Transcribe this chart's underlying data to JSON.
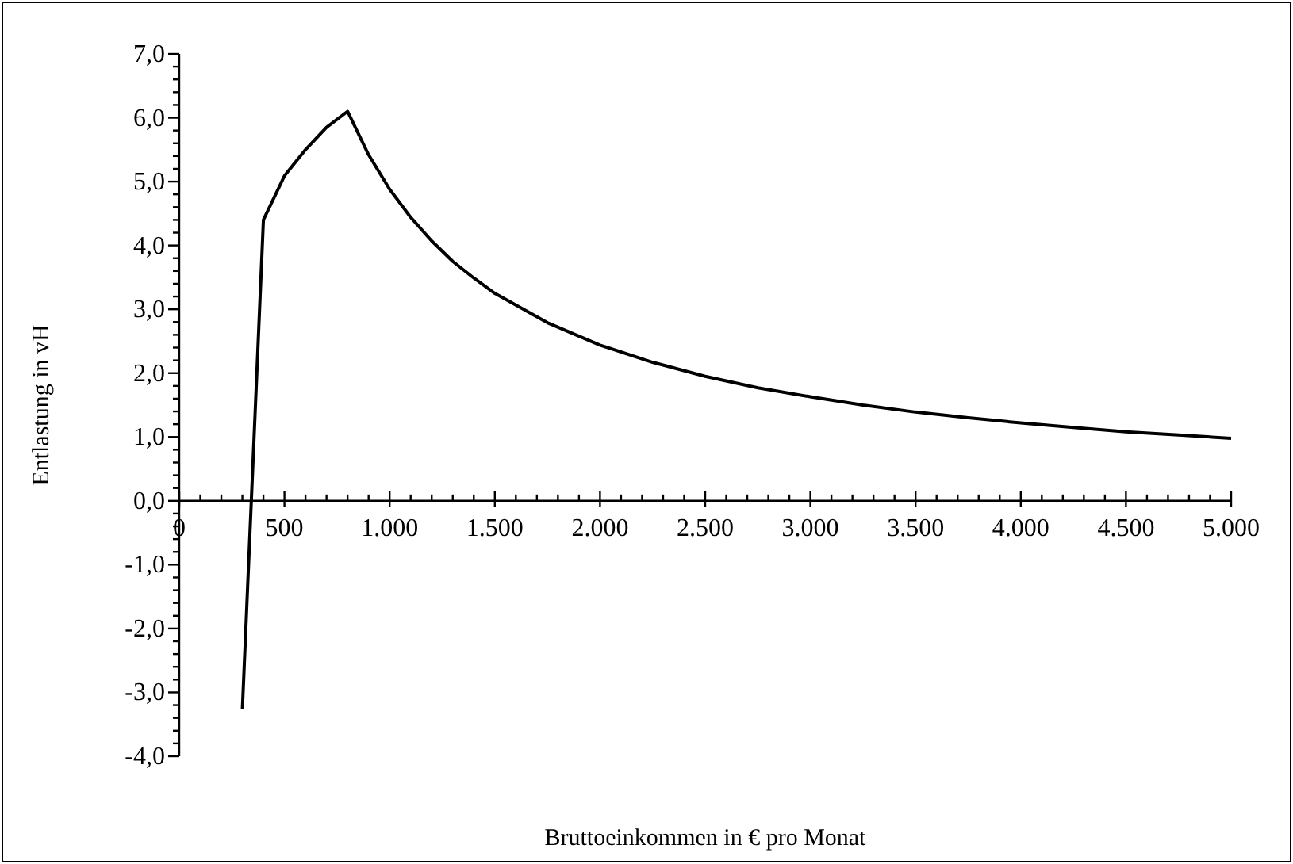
{
  "chart_data": {
    "type": "line",
    "xlabel": "Bruttoeinkommen in € pro Monat",
    "ylabel": "Entlastung in vH",
    "x": [
      300,
      400,
      500,
      600,
      700,
      800,
      900,
      1000,
      1100,
      1200,
      1300,
      1400,
      1500,
      1750,
      2000,
      2250,
      2500,
      2750,
      3000,
      3250,
      3500,
      3750,
      4000,
      4250,
      4500,
      4750,
      5000
    ],
    "series": [
      {
        "color": "#000000",
        "values": [
          -3.26,
          4.4,
          5.09,
          5.5,
          5.85,
          6.1,
          5.42,
          4.88,
          4.44,
          4.07,
          3.75,
          3.49,
          3.25,
          2.79,
          2.44,
          2.17,
          1.95,
          1.77,
          1.63,
          1.5,
          1.39,
          1.3,
          1.22,
          1.15,
          1.08,
          1.03,
          0.98
        ]
      }
    ],
    "xlim": [
      0,
      5000
    ],
    "ylim": [
      -4,
      7
    ],
    "xticks": [
      0,
      {
        "value": 100,
        "label": null
      },
      {
        "value": 200,
        "label": null
      },
      {
        "value": 300,
        "label": null
      },
      {
        "value": 400,
        "label": null
      },
      500,
      {
        "value": 600,
        "label": null
      },
      {
        "value": 700,
        "label": null
      },
      {
        "value": 800,
        "label": null
      },
      {
        "value": 900,
        "label": null
      },
      {
        "value": 1000,
        "label": "1.000"
      },
      {
        "value": 1100,
        "label": null
      },
      {
        "value": 1200,
        "label": null
      },
      {
        "value": 1300,
        "label": null
      },
      {
        "value": 1400,
        "label": null
      },
      {
        "value": 1500,
        "label": "1.500"
      },
      {
        "value": 1600,
        "label": null
      },
      {
        "value": 1700,
        "label": null
      },
      {
        "value": 1800,
        "label": null
      },
      {
        "value": 1900,
        "label": null
      },
      {
        "value": 2000,
        "label": "2.000"
      },
      {
        "value": 2100,
        "label": null
      },
      {
        "value": 2200,
        "label": null
      },
      {
        "value": 2300,
        "label": null
      },
      {
        "value": 2400,
        "label": null
      },
      {
        "value": 2500,
        "label": "2.500"
      },
      {
        "value": 2600,
        "label": null
      },
      {
        "value": 2700,
        "label": null
      },
      {
        "value": 2800,
        "label": null
      },
      {
        "value": 2900,
        "label": null
      },
      {
        "value": 3000,
        "label": "3.000"
      },
      {
        "value": 3100,
        "label": null
      },
      {
        "value": 3200,
        "label": null
      },
      {
        "value": 3300,
        "label": null
      },
      {
        "value": 3400,
        "label": null
      },
      {
        "value": 3500,
        "label": "3.500"
      },
      {
        "value": 3600,
        "label": null
      },
      {
        "value": 3700,
        "label": null
      },
      {
        "value": 3800,
        "label": null
      },
      {
        "value": 3900,
        "label": null
      },
      {
        "value": 4000,
        "label": "4.000"
      },
      {
        "value": 4100,
        "label": null
      },
      {
        "value": 4200,
        "label": null
      },
      {
        "value": 4300,
        "label": null
      },
      {
        "value": 4400,
        "label": null
      },
      {
        "value": 4500,
        "label": "4.500"
      },
      {
        "value": 4600,
        "label": null
      },
      {
        "value": 4700,
        "label": null
      },
      {
        "value": 4800,
        "label": null
      },
      {
        "value": 4900,
        "label": null
      },
      {
        "value": 5000,
        "label": "5.000"
      }
    ],
    "yticks": [
      {
        "value": -4,
        "label": "-4,0"
      },
      {
        "value": -3.8,
        "label": null
      },
      {
        "value": -3.6,
        "label": null
      },
      {
        "value": -3.4,
        "label": null
      },
      {
        "value": -3.2,
        "label": null
      },
      {
        "value": -3,
        "label": "-3,0"
      },
      {
        "value": -2.8,
        "label": null
      },
      {
        "value": -2.6,
        "label": null
      },
      {
        "value": -2.4,
        "label": null
      },
      {
        "value": -2.2,
        "label": null
      },
      {
        "value": -2,
        "label": "-2,0"
      },
      {
        "value": -1.8,
        "label": null
      },
      {
        "value": -1.6,
        "label": null
      },
      {
        "value": -1.4,
        "label": null
      },
      {
        "value": -1.2,
        "label": null
      },
      {
        "value": -1,
        "label": "-1,0"
      },
      {
        "value": -0.8,
        "label": null
      },
      {
        "value": -0.6,
        "label": null
      },
      {
        "value": -0.4,
        "label": null
      },
      {
        "value": -0.2,
        "label": null
      },
      {
        "value": 0,
        "label": "0,0"
      },
      {
        "value": 0.2,
        "label": null
      },
      {
        "value": 0.4,
        "label": null
      },
      {
        "value": 0.6,
        "label": null
      },
      {
        "value": 0.8,
        "label": null
      },
      {
        "value": 1,
        "label": "1,0"
      },
      {
        "value": 1.2,
        "label": null
      },
      {
        "value": 1.4,
        "label": null
      },
      {
        "value": 1.6,
        "label": null
      },
      {
        "value": 1.8,
        "label": null
      },
      {
        "value": 2,
        "label": "2,0"
      },
      {
        "value": 2.2,
        "label": null
      },
      {
        "value": 2.4,
        "label": null
      },
      {
        "value": 2.6,
        "label": null
      },
      {
        "value": 2.8,
        "label": null
      },
      {
        "value": 3,
        "label": "3,0"
      },
      {
        "value": 3.2,
        "label": null
      },
      {
        "value": 3.4,
        "label": null
      },
      {
        "value": 3.6,
        "label": null
      },
      {
        "value": 3.8,
        "label": null
      },
      {
        "value": 4,
        "label": "4,0"
      },
      {
        "value": 4.2,
        "label": null
      },
      {
        "value": 4.4,
        "label": null
      },
      {
        "value": 4.6,
        "label": null
      },
      {
        "value": 4.8,
        "label": null
      },
      {
        "value": 5,
        "label": "5,0"
      },
      {
        "value": 5.2,
        "label": null
      },
      {
        "value": 5.4,
        "label": null
      },
      {
        "value": 5.6,
        "label": null
      },
      {
        "value": 5.8,
        "label": null
      },
      {
        "value": 6,
        "label": "6,0"
      },
      {
        "value": 6.2,
        "label": null
      },
      {
        "value": 6.4,
        "label": null
      },
      {
        "value": 6.6,
        "label": null
      },
      {
        "value": 6.8,
        "label": null
      },
      {
        "value": 7,
        "label": "7,0"
      }
    ],
    "grid": false,
    "legend": false,
    "marker": "none",
    "line_style": "solid"
  }
}
